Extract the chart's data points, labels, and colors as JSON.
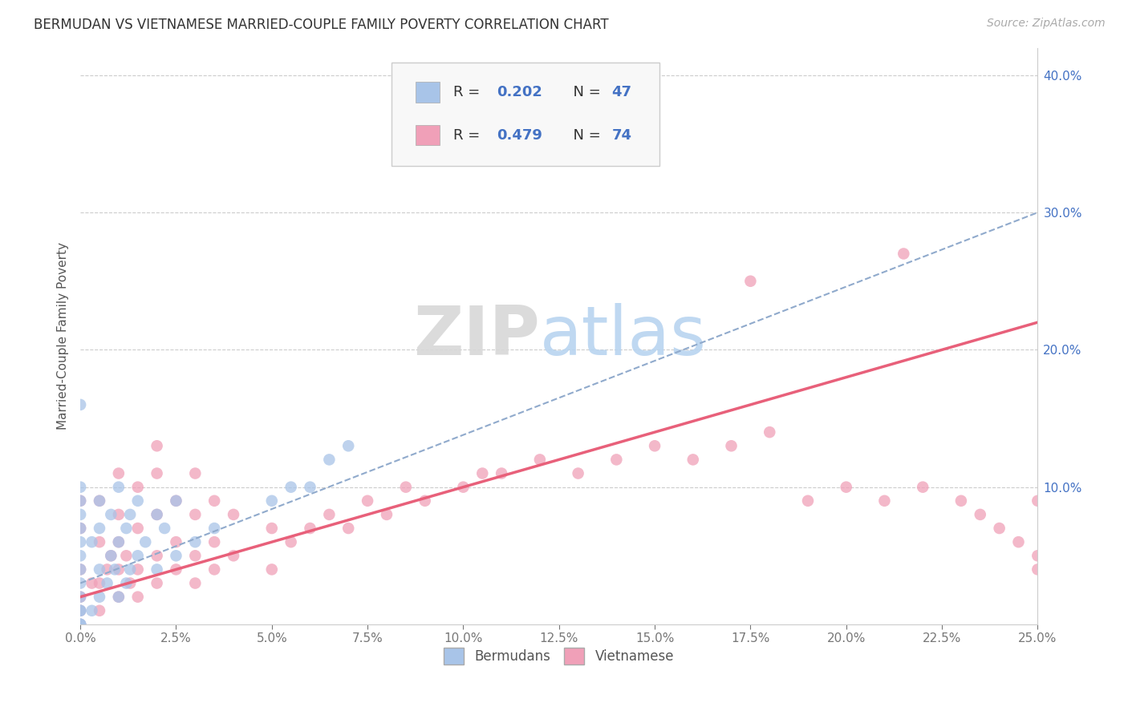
{
  "title": "BERMUDAN VS VIETNAMESE MARRIED-COUPLE FAMILY POVERTY CORRELATION CHART",
  "source": "Source: ZipAtlas.com",
  "xlabel_ticks": [
    "0.0%",
    "2.5%",
    "5.0%",
    "7.5%",
    "10.0%",
    "12.5%",
    "15.0%",
    "17.5%",
    "20.0%",
    "22.5%",
    "25.0%"
  ],
  "ylabel": "Married-Couple Family Poverty",
  "xlim": [
    0.0,
    0.25
  ],
  "ylim": [
    0.0,
    0.42
  ],
  "ytick_positions": [
    0.1,
    0.2,
    0.3,
    0.4
  ],
  "ytick_labels": [
    "10.0%",
    "20.0%",
    "30.0%",
    "40.0%"
  ],
  "xtick_positions": [
    0.0,
    0.025,
    0.05,
    0.075,
    0.1,
    0.125,
    0.15,
    0.175,
    0.2,
    0.225,
    0.25
  ],
  "bermuda_R": 0.202,
  "bermuda_N": 47,
  "vietnamese_R": 0.479,
  "vietnamese_N": 74,
  "bermuda_color": "#a8c4e8",
  "vietnamese_color": "#f0a0b8",
  "trendline_bermuda_color": "#90aacc",
  "trendline_vietnamese_color": "#e8607a",
  "watermark_zip": "ZIP",
  "watermark_atlas": "atlas",
  "bermuda_x": [
    0.0,
    0.0,
    0.0,
    0.0,
    0.0,
    0.0,
    0.0,
    0.0,
    0.0,
    0.0,
    0.0,
    0.0,
    0.0,
    0.0,
    0.0,
    0.003,
    0.003,
    0.005,
    0.005,
    0.005,
    0.005,
    0.007,
    0.008,
    0.008,
    0.009,
    0.01,
    0.01,
    0.01,
    0.012,
    0.012,
    0.013,
    0.013,
    0.015,
    0.015,
    0.017,
    0.02,
    0.02,
    0.022,
    0.025,
    0.025,
    0.03,
    0.035,
    0.05,
    0.055,
    0.06,
    0.065,
    0.07
  ],
  "bermuda_y": [
    0.0,
    0.0,
    0.0,
    0.01,
    0.01,
    0.02,
    0.03,
    0.04,
    0.05,
    0.06,
    0.07,
    0.08,
    0.09,
    0.1,
    0.16,
    0.01,
    0.06,
    0.02,
    0.04,
    0.07,
    0.09,
    0.03,
    0.05,
    0.08,
    0.04,
    0.02,
    0.06,
    0.1,
    0.03,
    0.07,
    0.04,
    0.08,
    0.05,
    0.09,
    0.06,
    0.04,
    0.08,
    0.07,
    0.05,
    0.09,
    0.06,
    0.07,
    0.09,
    0.1,
    0.1,
    0.12,
    0.13
  ],
  "vietnamese_x": [
    0.0,
    0.0,
    0.0,
    0.0,
    0.0,
    0.0,
    0.003,
    0.005,
    0.005,
    0.005,
    0.005,
    0.007,
    0.008,
    0.01,
    0.01,
    0.01,
    0.01,
    0.01,
    0.012,
    0.013,
    0.015,
    0.015,
    0.015,
    0.015,
    0.02,
    0.02,
    0.02,
    0.02,
    0.02,
    0.025,
    0.025,
    0.025,
    0.03,
    0.03,
    0.03,
    0.03,
    0.035,
    0.035,
    0.035,
    0.04,
    0.04,
    0.05,
    0.05,
    0.055,
    0.06,
    0.065,
    0.07,
    0.075,
    0.08,
    0.085,
    0.09,
    0.1,
    0.105,
    0.11,
    0.12,
    0.13,
    0.14,
    0.15,
    0.16,
    0.17,
    0.175,
    0.18,
    0.19,
    0.2,
    0.21,
    0.215,
    0.22,
    0.23,
    0.235,
    0.24,
    0.245,
    0.25,
    0.25,
    0.25
  ],
  "vietnamese_y": [
    0.0,
    0.01,
    0.02,
    0.04,
    0.07,
    0.09,
    0.03,
    0.01,
    0.03,
    0.06,
    0.09,
    0.04,
    0.05,
    0.02,
    0.04,
    0.06,
    0.08,
    0.11,
    0.05,
    0.03,
    0.02,
    0.04,
    0.07,
    0.1,
    0.03,
    0.05,
    0.08,
    0.11,
    0.13,
    0.04,
    0.06,
    0.09,
    0.03,
    0.05,
    0.08,
    0.11,
    0.04,
    0.06,
    0.09,
    0.05,
    0.08,
    0.04,
    0.07,
    0.06,
    0.07,
    0.08,
    0.07,
    0.09,
    0.08,
    0.1,
    0.09,
    0.1,
    0.11,
    0.11,
    0.12,
    0.11,
    0.12,
    0.13,
    0.12,
    0.13,
    0.25,
    0.14,
    0.09,
    0.1,
    0.09,
    0.27,
    0.1,
    0.09,
    0.08,
    0.07,
    0.06,
    0.05,
    0.09,
    0.04
  ],
  "berm_trend_x0": 0.0,
  "berm_trend_y0": 0.03,
  "berm_trend_x1": 0.25,
  "berm_trend_y1": 0.3,
  "viet_trend_x0": 0.0,
  "viet_trend_y0": 0.02,
  "viet_trend_x1": 0.25,
  "viet_trend_y1": 0.22
}
